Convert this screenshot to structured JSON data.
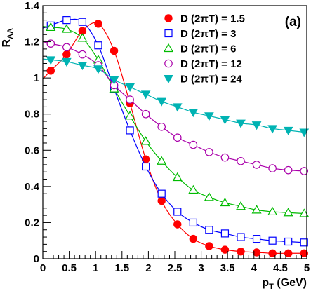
{
  "chart_data": {
    "type": "scatter",
    "panel_label": "(a)",
    "ylabel_main": "R",
    "ylabel_sub": "AA",
    "xlabel_main": "p",
    "xlabel_sub": "T",
    "xlabel_unit": " (GeV)",
    "xlim": [
      0,
      5
    ],
    "ylim": [
      0,
      1.4
    ],
    "x_ticks": [
      0,
      0.5,
      1,
      1.5,
      2,
      2.5,
      3,
      3.5,
      4,
      4.5,
      5
    ],
    "x_tick_labels": [
      "0",
      "0.5",
      "1",
      "1.5",
      "2",
      "2.5",
      "3",
      "3.5",
      "4",
      "4.5",
      "5"
    ],
    "y_ticks": [
      0,
      0.2,
      0.4,
      0.6,
      0.8,
      1,
      1.2,
      1.4
    ],
    "y_tick_labels": [
      "0",
      "0.2",
      "0.4",
      "0.6",
      "0.8",
      "1",
      "1.2",
      "1.4"
    ],
    "grid": false,
    "legend_position": "top-right",
    "series": [
      {
        "name": "D (2πT) = 1.5",
        "marker": "filled-circle",
        "color": "#ff0000",
        "x": [
          0.15,
          0.45,
          0.75,
          1.05,
          1.35,
          1.65,
          1.95,
          2.25,
          2.55,
          2.85,
          3.15,
          3.45,
          3.75,
          4.05,
          4.35,
          4.65,
          4.95
        ],
        "y": [
          1.04,
          1.13,
          1.26,
          1.3,
          1.15,
          0.86,
          0.55,
          0.32,
          0.19,
          0.11,
          0.07,
          0.05,
          0.04,
          0.035,
          0.03,
          0.03,
          0.03
        ]
      },
      {
        "name": "D (2πT) = 3",
        "marker": "open-square",
        "color": "#0000ff",
        "x": [
          0.15,
          0.45,
          0.75,
          1.05,
          1.35,
          1.65,
          1.95,
          2.25,
          2.55,
          2.85,
          3.15,
          3.45,
          3.75,
          4.05,
          4.35,
          4.65,
          4.95
        ],
        "y": [
          1.29,
          1.32,
          1.31,
          1.18,
          0.94,
          0.71,
          0.51,
          0.36,
          0.26,
          0.2,
          0.16,
          0.14,
          0.12,
          0.11,
          0.1,
          0.095,
          0.09
        ]
      },
      {
        "name": "D (2πT) = 6",
        "marker": "open-triangle-up",
        "color": "#00bb00",
        "x": [
          0.15,
          0.45,
          0.75,
          1.05,
          1.35,
          1.65,
          1.95,
          2.25,
          2.55,
          2.85,
          3.15,
          3.45,
          3.75,
          4.05,
          4.35,
          4.65,
          4.95
        ],
        "y": [
          1.28,
          1.27,
          1.22,
          1.1,
          0.94,
          0.79,
          0.65,
          0.54,
          0.45,
          0.38,
          0.34,
          0.31,
          0.29,
          0.27,
          0.26,
          0.255,
          0.25
        ]
      },
      {
        "name": "D (2πT) = 12",
        "marker": "open-circle",
        "color": "#aa00aa",
        "x": [
          0.15,
          0.45,
          0.75,
          1.05,
          1.35,
          1.65,
          1.95,
          2.25,
          2.55,
          2.85,
          3.15,
          3.45,
          3.75,
          4.05,
          4.35,
          4.65,
          4.95
        ],
        "y": [
          1.19,
          1.17,
          1.13,
          1.07,
          0.96,
          0.88,
          0.8,
          0.73,
          0.67,
          0.63,
          0.59,
          0.56,
          0.54,
          0.52,
          0.5,
          0.49,
          0.485
        ]
      },
      {
        "name": "D (2πT) = 24",
        "marker": "filled-triangle-down",
        "color": "#00b3b3",
        "x": [
          0.15,
          0.45,
          0.75,
          1.05,
          1.35,
          1.65,
          1.95,
          2.25,
          2.55,
          2.85,
          3.15,
          3.45,
          3.75,
          4.05,
          4.35,
          4.65,
          4.95
        ],
        "y": [
          1.1,
          1.09,
          1.07,
          1.05,
          0.99,
          0.95,
          0.91,
          0.87,
          0.84,
          0.81,
          0.79,
          0.77,
          0.75,
          0.74,
          0.72,
          0.71,
          0.7
        ]
      }
    ]
  }
}
